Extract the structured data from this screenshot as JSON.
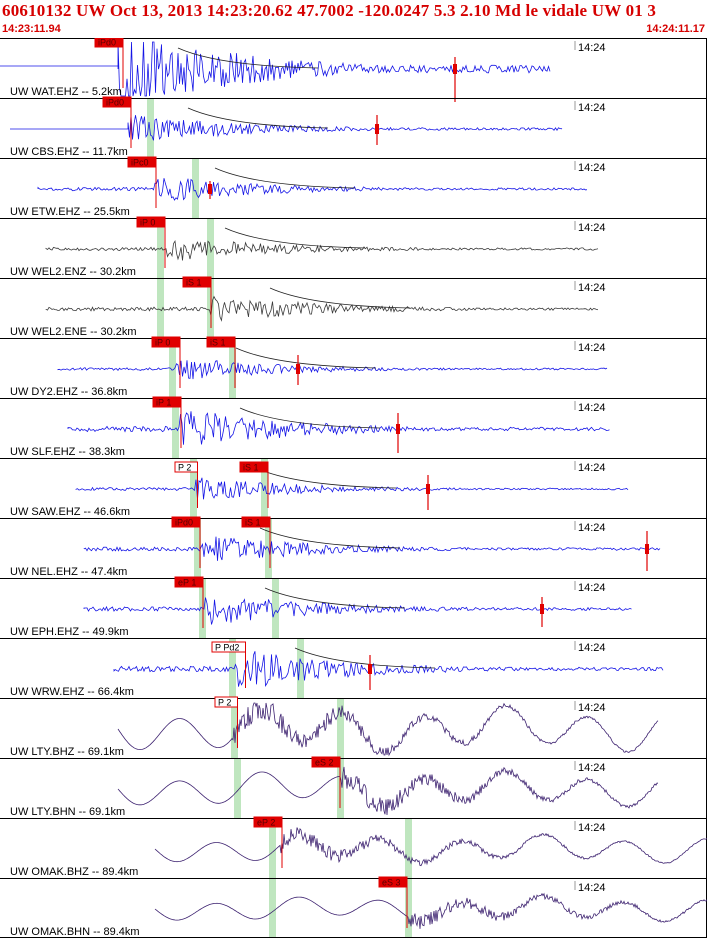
{
  "header": {
    "title": "60610132 UW Oct 13, 2013 14:23:20.62   47.7002 -120.0247  5.3 2.10 Md le vidale UW 01   3",
    "time_start": "14:23:11.94",
    "time_end": "14:24:11.17"
  },
  "colors": {
    "header_text": "#d60000",
    "vertical_trace": "#1616e6",
    "horizontal_trace": "#3a3a3a",
    "broadband_trace": "#3d2270",
    "pick_box": "#e00000",
    "pick_band": "#bfe6bf",
    "frame": "#000000"
  },
  "traces": [
    {
      "label": "UW WAT.EHZ -- 5.2km",
      "time_label": "14:24",
      "color_kind": "vertical",
      "picks": [
        "iPd0"
      ]
    },
    {
      "label": "UW CBS.EHZ -- 11.7km",
      "time_label": "14:24",
      "color_kind": "vertical",
      "picks": [
        "iPd0"
      ]
    },
    {
      "label": "UW ETW.EHZ -- 25.5km",
      "time_label": "14:24",
      "color_kind": "vertical",
      "picks": [
        "iPc0"
      ]
    },
    {
      "label": "UW WEL2.ENZ -- 30.2km",
      "time_label": "14:24",
      "color_kind": "horizontal",
      "picks": [
        "iP 0"
      ]
    },
    {
      "label": "UW WEL2.ENE -- 30.2km",
      "time_label": "14:24",
      "color_kind": "horizontal",
      "picks": [
        "iS 1"
      ]
    },
    {
      "label": "UW DY2.EHZ -- 36.8km",
      "time_label": "14:24",
      "color_kind": "vertical",
      "picks": [
        "iP 0",
        "iS 1"
      ]
    },
    {
      "label": "UW SLF.EHZ -- 38.3km",
      "time_label": "14:24",
      "color_kind": "vertical",
      "picks": [
        "iP 1"
      ]
    },
    {
      "label": "UW SAW.EHZ -- 46.6km",
      "time_label": "14:24",
      "color_kind": "vertical",
      "picks": [
        "P 2",
        "iS 1"
      ]
    },
    {
      "label": "UW NEL.EHZ -- 47.4km",
      "time_label": "14:24",
      "color_kind": "vertical",
      "picks": [
        "iPd0",
        "iS 1"
      ]
    },
    {
      "label": "UW EPH.EHZ -- 49.9km",
      "time_label": "14:24",
      "color_kind": "vertical",
      "picks": [
        "eP 1"
      ]
    },
    {
      "label": "UW WRW.EHZ -- 66.4km",
      "time_label": "14:24",
      "color_kind": "vertical",
      "picks": [
        "P Pd2"
      ]
    },
    {
      "label": "UW LTY.BHZ -- 69.1km",
      "time_label": "14:24",
      "color_kind": "broadband",
      "picks": [
        "P 2"
      ]
    },
    {
      "label": "UW LTY.BHN -- 69.1km",
      "time_label": "14:24",
      "color_kind": "broadband",
      "picks": [
        "eS 2"
      ]
    },
    {
      "label": "UW OMAK.BHZ -- 89.4km",
      "time_label": "14:24",
      "color_kind": "broadband",
      "picks": [
        "eP 2"
      ]
    },
    {
      "label": "UW OMAK.BHN -- 89.4km",
      "time_label": "14:24",
      "color_kind": "broadband",
      "picks": [
        "eS 3"
      ]
    }
  ]
}
